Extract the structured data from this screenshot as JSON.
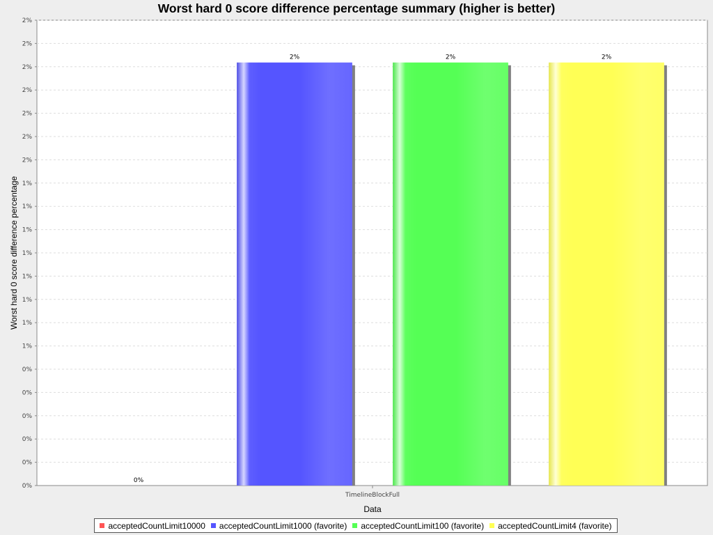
{
  "chart_data": {
    "type": "bar",
    "title": "Worst hard 0 score difference percentage summary (higher is better)",
    "xlabel": "Data",
    "ylabel": "Worst hard 0 score difference percentage",
    "categories": [
      "TimelineBlockFull"
    ],
    "ylim": [
      0,
      2.2
    ],
    "y_tick_labels": [
      "0%",
      "0%",
      "0%",
      "0%",
      "0%",
      "0%",
      "1%",
      "1%",
      "1%",
      "1%",
      "1%",
      "1%",
      "1%",
      "1%",
      "2%",
      "2%",
      "2%",
      "2%",
      "2%",
      "2%",
      "2%"
    ],
    "grid": true,
    "legend_position": "bottom",
    "series": [
      {
        "name": "acceptedCountLimit10000",
        "values": [
          0
        ],
        "label": "0%",
        "color": "#ff5555"
      },
      {
        "name": "acceptedCountLimit1000 (favorite)",
        "values": [
          2
        ],
        "label": "2%",
        "color": "#5555ff"
      },
      {
        "name": "acceptedCountLimit100 (favorite)",
        "values": [
          2
        ],
        "label": "2%",
        "color": "#55ff55"
      },
      {
        "name": "acceptedCountLimit4 (favorite)",
        "values": [
          2
        ],
        "label": "2%",
        "color": "#ffff55"
      }
    ]
  }
}
